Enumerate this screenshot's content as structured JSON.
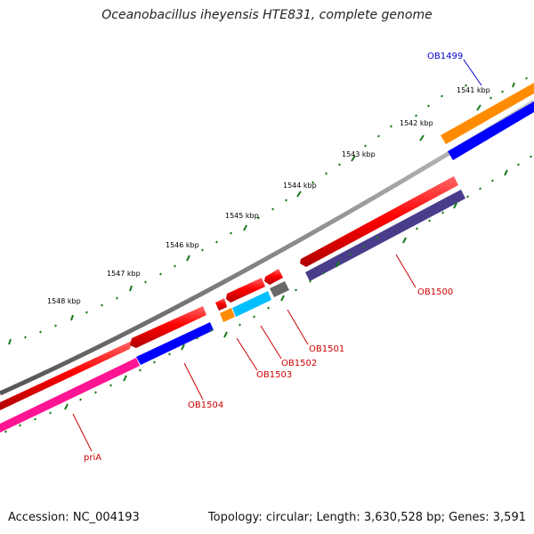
{
  "title": "Oceanobacillus iheyensis HTE831, complete genome",
  "footer": {
    "accession": "Accession: NC_004193",
    "summary": "Topology: circular; Length: 3,630,528 bp; Genes: 3,591"
  },
  "ruler": {
    "labels": [
      "1541 kbp",
      "1542 kbp",
      "1543 kbp",
      "1544 kbp",
      "1545 kbp",
      "1546 kbp",
      "1547 kbp",
      "1548 kbp"
    ]
  },
  "genes": [
    {
      "id": "OB1499",
      "label": "OB1499",
      "label_color": "#0000cc"
    },
    {
      "id": "OB1500",
      "label": "OB1500",
      "label_color": "#cc0000"
    },
    {
      "id": "OB1501",
      "label": "OB1501",
      "label_color": "#cc0000"
    },
    {
      "id": "OB1502",
      "label": "OB1502",
      "label_color": "#cc0000"
    },
    {
      "id": "OB1503",
      "label": "OB1503",
      "label_color": "#cc0000"
    },
    {
      "id": "OB1504",
      "label": "OB1504",
      "label_color": "#cc0000"
    },
    {
      "id": "priA",
      "label": "priA",
      "label_color": "#cc0000"
    }
  ],
  "colors": {
    "cds": "#ff0000",
    "backbone": "#808080",
    "tick": "#1a7a1a",
    "orange": "#ff8c00",
    "blue": "#0000ff",
    "slate": "#483d8b",
    "cyan": "#00bfff",
    "pink": "#ff1493",
    "gray": "#696969"
  }
}
